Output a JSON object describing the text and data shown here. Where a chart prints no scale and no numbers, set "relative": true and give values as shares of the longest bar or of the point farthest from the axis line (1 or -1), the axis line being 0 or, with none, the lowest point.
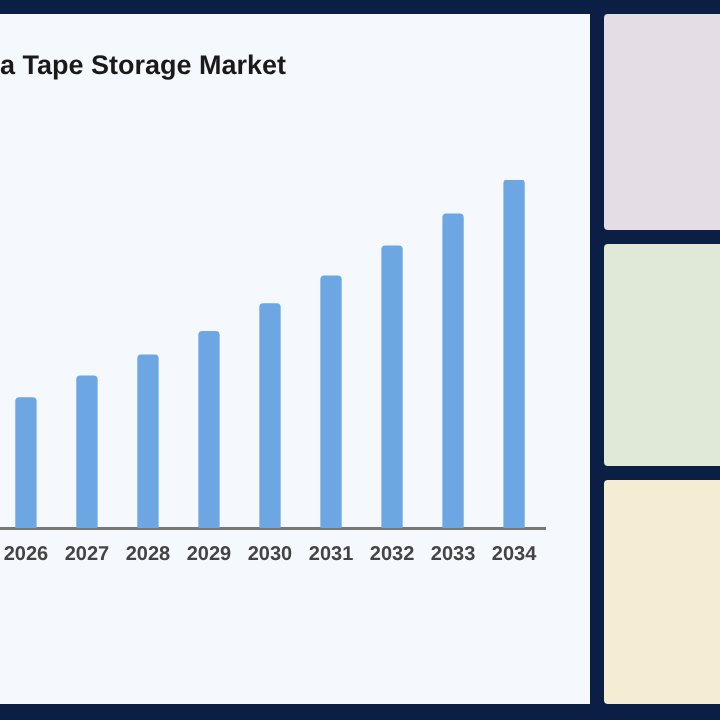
{
  "chart_data": {
    "type": "bar",
    "title": "a Tape Storage Market",
    "categories": [
      "2026",
      "2027",
      "2028",
      "2029",
      "2030",
      "2031",
      "2032",
      "2033",
      "2034"
    ],
    "relative": true,
    "values": [
      0.374,
      0.436,
      0.497,
      0.564,
      0.644,
      0.724,
      0.81,
      0.902,
      1
    ],
    "color": "#6ca6e3",
    "grid": false,
    "legend": false
  }
}
